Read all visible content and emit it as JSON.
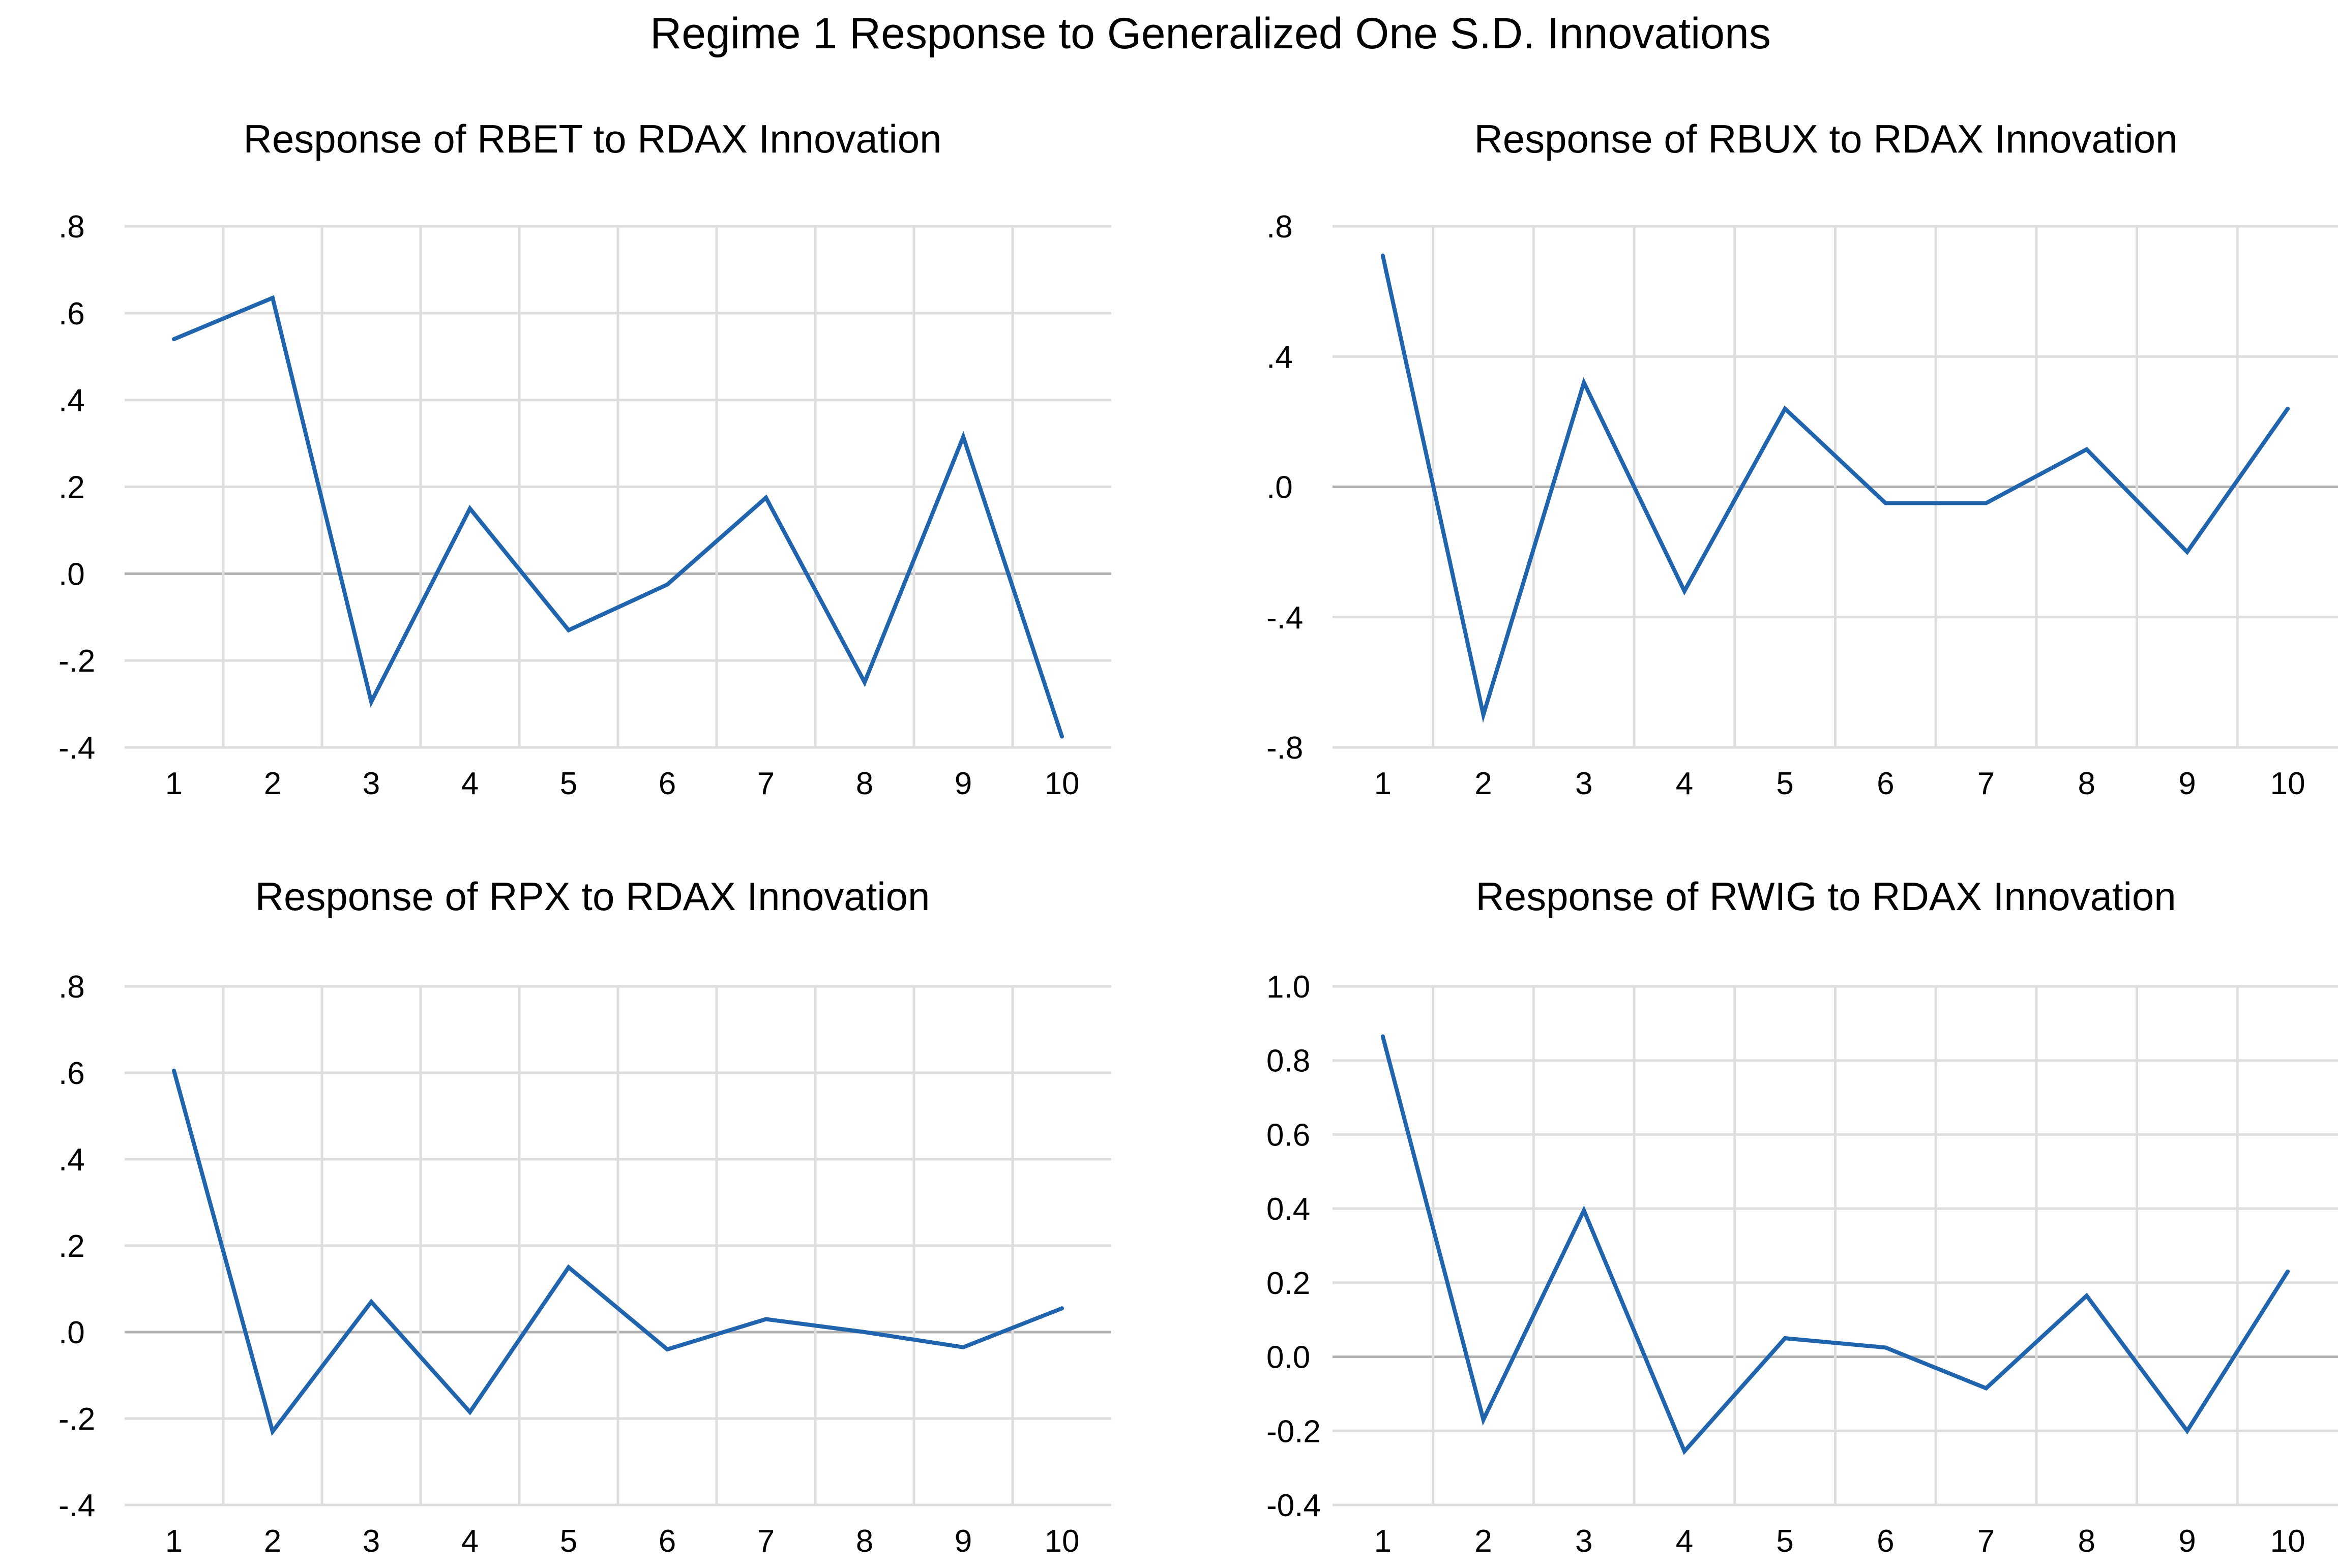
{
  "title": "Regime 1 Response to Generalized One S.D. Innovations",
  "chart_data": [
    {
      "type": "line",
      "title": "Response of RBET to RDAX Innovation",
      "x": [
        1,
        2,
        3,
        4,
        5,
        6,
        7,
        8,
        9,
        10
      ],
      "categories": [
        "1",
        "2",
        "3",
        "4",
        "5",
        "6",
        "7",
        "8",
        "9",
        "10"
      ],
      "series": [
        {
          "name": "RBET",
          "values": [
            0.54,
            0.635,
            -0.295,
            0.15,
            -0.13,
            -0.025,
            0.175,
            -0.25,
            0.315,
            -0.375
          ]
        }
      ],
      "ylim": [
        -0.4,
        0.8
      ],
      "yticks": [
        0.8,
        0.6,
        0.4,
        0.2,
        0.0,
        -0.2,
        -0.4
      ],
      "ytick_labels": [
        ".8",
        ".6",
        ".4",
        ".2",
        ".0",
        "-.2",
        "-.4"
      ],
      "xlabel": "",
      "ylabel": "",
      "grid": true,
      "color": "#1f64ad"
    },
    {
      "type": "line",
      "title": "Response of RBUX to RDAX Innovation",
      "x": [
        1,
        2,
        3,
        4,
        5,
        6,
        7,
        8,
        9,
        10
      ],
      "categories": [
        "1",
        "2",
        "3",
        "4",
        "5",
        "6",
        "7",
        "8",
        "9",
        "10"
      ],
      "series": [
        {
          "name": "RBUX",
          "values": [
            0.71,
            -0.7,
            0.32,
            -0.32,
            0.24,
            -0.05,
            -0.05,
            0.115,
            -0.2,
            0.24
          ]
        }
      ],
      "ylim": [
        -0.8,
        0.8
      ],
      "yticks": [
        0.8,
        0.4,
        0.0,
        -0.4,
        -0.8
      ],
      "ytick_labels": [
        ".8",
        ".4",
        ".0",
        "-.4",
        "-.8"
      ],
      "xlabel": "",
      "ylabel": "",
      "grid": true,
      "color": "#1f64ad"
    },
    {
      "type": "line",
      "title": "Response of RPX to RDAX Innovation",
      "x": [
        1,
        2,
        3,
        4,
        5,
        6,
        7,
        8,
        9,
        10
      ],
      "categories": [
        "1",
        "2",
        "3",
        "4",
        "5",
        "6",
        "7",
        "8",
        "9",
        "10"
      ],
      "series": [
        {
          "name": "RPX",
          "values": [
            0.605,
            -0.23,
            0.07,
            -0.185,
            0.15,
            -0.04,
            0.03,
            0.0,
            -0.035,
            0.055
          ]
        }
      ],
      "ylim": [
        -0.4,
        0.8
      ],
      "yticks": [
        0.8,
        0.6,
        0.4,
        0.2,
        0.0,
        -0.2,
        -0.4
      ],
      "ytick_labels": [
        ".8",
        ".6",
        ".4",
        ".2",
        ".0",
        "-.2",
        "-.4"
      ],
      "xlabel": "",
      "ylabel": "",
      "grid": true,
      "color": "#1f64ad"
    },
    {
      "type": "line",
      "title": "Response of RWIG to RDAX Innovation",
      "x": [
        1,
        2,
        3,
        4,
        5,
        6,
        7,
        8,
        9,
        10
      ],
      "categories": [
        "1",
        "2",
        "3",
        "4",
        "5",
        "6",
        "7",
        "8",
        "9",
        "10"
      ],
      "series": [
        {
          "name": "RWIG",
          "values": [
            0.865,
            -0.17,
            0.395,
            -0.255,
            0.05,
            0.025,
            -0.085,
            0.165,
            -0.2,
            0.23
          ]
        }
      ],
      "ylim": [
        -0.4,
        1.0
      ],
      "yticks": [
        1.0,
        0.8,
        0.6,
        0.4,
        0.2,
        0.0,
        -0.2,
        -0.4
      ],
      "ytick_labels": [
        "1.0",
        "0.8",
        "0.6",
        "0.4",
        "0.2",
        "0.0",
        "-0.2",
        "-0.4"
      ],
      "xlabel": "",
      "ylabel": "",
      "grid": true,
      "color": "#1f64ad"
    }
  ]
}
